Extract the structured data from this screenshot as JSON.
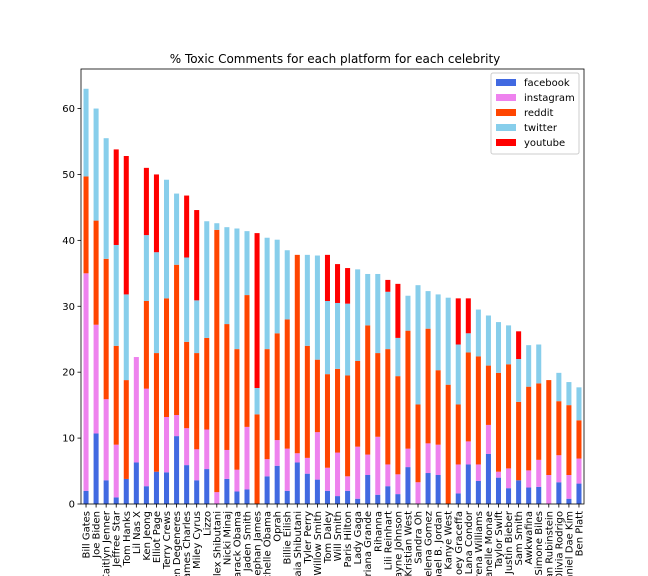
{
  "chart_data": {
    "type": "bar",
    "stacked": true,
    "title": "% Toxic Comments for each platform for each celebrity",
    "xlabel": "",
    "ylabel": "",
    "ylim": [
      0,
      66
    ],
    "yticks": [
      0,
      10,
      20,
      30,
      40,
      50,
      60
    ],
    "grid": false,
    "legend_position": "top-right",
    "categories": [
      "Bill Gates",
      "Joe Biden",
      "Caitlyn Jenner",
      "Jeffree Star",
      "Tom Hanks",
      "Lil Nas X",
      "Ken Jeong",
      "Elliot Page",
      "Terry Crews",
      "Ellen Degeneres",
      "James Charles",
      "Miley Cyrus",
      "Lizzo",
      "Alex Shibutani",
      "Nicki Minaj",
      "Barack Obama",
      "Jaden Smith",
      "Stephan James",
      "Michelle Obama",
      "Oprah",
      "Billie Eilish",
      "Maia Shibutani",
      "Tyler Perry",
      "Willow Smith",
      "Tom Daley",
      "Will Smith",
      "Paris Hilton",
      "Lady Gaga",
      "Ariana Grande",
      "Rihanna",
      "Lili Reinhart",
      "Dwayne Johnson",
      "Kristian West",
      "Sandra Oh",
      "Selena Gomez",
      "Michael B. Jordan",
      "Kanye West",
      "Joey Graceffa",
      "Lana Condor",
      "Serena Williams",
      "Janelle Monae",
      "Taylor Swift",
      "Justin Bieber",
      "Sam Smith",
      "Awkwafina",
      "Simone Biles",
      "Troian Rubinstein",
      "Olivia Rodrigo",
      "Daniel Dae Kim",
      "Ben Platt"
    ],
    "series": [
      {
        "name": "facebook",
        "color": "#4169e1",
        "values": [
          2,
          10.7,
          3.6,
          1,
          3.8,
          6.3,
          2.7,
          4.9,
          4.8,
          10.3,
          5.9,
          3.6,
          5.3,
          0,
          3.8,
          1.9,
          2.2,
          0,
          4.2,
          5.8,
          2,
          6.3,
          4.6,
          3.7,
          2,
          1.2,
          2,
          0.8,
          4.4,
          1.4,
          2.7,
          1.5,
          5.6,
          0,
          4.7,
          4.4,
          0,
          1.6,
          6,
          3.5,
          7.6,
          4,
          2.4,
          3.6,
          2.5,
          2.6,
          0,
          3.3,
          0.8,
          3.1
        ]
      },
      {
        "name": "instagram",
        "color": "#ee82ee",
        "values": [
          33,
          16.5,
          12.3,
          8,
          0,
          16,
          14.8,
          0,
          8.4,
          3.2,
          5.6,
          4.7,
          6,
          1.8,
          4.4,
          3.3,
          9.5,
          0,
          2.6,
          3.9,
          6.4,
          1.4,
          2.4,
          7.2,
          3.5,
          6.6,
          2.2,
          7.9,
          3.1,
          8.8,
          3.3,
          3,
          2.8,
          3.3,
          4.5,
          4.6,
          0,
          4.4,
          3.5,
          2.5,
          4.4,
          0.9,
          3,
          0,
          2.6,
          4.1,
          4.4,
          4.1,
          3.6,
          3.8
        ]
      },
      {
        "name": "reddit",
        "color": "#ff4500",
        "values": [
          14.7,
          15.8,
          21.3,
          15,
          15,
          0,
          13.3,
          18,
          18,
          22.8,
          13.1,
          14.6,
          13.9,
          39.8,
          19.1,
          18.3,
          20,
          13.6,
          16.7,
          16.2,
          19.6,
          30.1,
          17,
          11,
          14.2,
          12.7,
          15.3,
          13,
          19.6,
          12.7,
          17.5,
          14.9,
          17.9,
          11.8,
          17.4,
          11.3,
          18.1,
          9.1,
          13.5,
          16.4,
          9,
          15,
          15.8,
          11.9,
          12.7,
          11.6,
          14.4,
          8.2,
          10.6,
          5.8
        ]
      },
      {
        "name": "twitter",
        "color": "#87ceeb",
        "values": [
          13.3,
          17,
          18.3,
          15.3,
          13,
          0,
          10,
          15.3,
          18,
          10.8,
          12.8,
          8,
          17.7,
          1,
          14.7,
          18.3,
          9.7,
          4,
          16.9,
          14.2,
          10.5,
          0,
          13.8,
          15.8,
          11.1,
          10,
          10.9,
          13.9,
          7.8,
          12,
          8.7,
          5.8,
          5.3,
          18.1,
          5.7,
          11.5,
          13.2,
          9.1,
          2.9,
          7.1,
          7.6,
          7.7,
          5.9,
          6.5,
          6.3,
          5.9,
          0,
          4.3,
          3.5,
          5
        ]
      },
      {
        "name": "youtube",
        "color": "#ff0000",
        "values": [
          0,
          0,
          0,
          14.5,
          21,
          0,
          10.2,
          11.8,
          0,
          0,
          9.4,
          13.7,
          0,
          0,
          0,
          0,
          0,
          23.5,
          0,
          0,
          0,
          0,
          0,
          0,
          7,
          5.9,
          5.4,
          0,
          0,
          0,
          1.8,
          8.2,
          0,
          0,
          0,
          0,
          0,
          7,
          5.3,
          0,
          0,
          0,
          0,
          4.2,
          0,
          0,
          0,
          0,
          0,
          0
        ]
      }
    ]
  }
}
